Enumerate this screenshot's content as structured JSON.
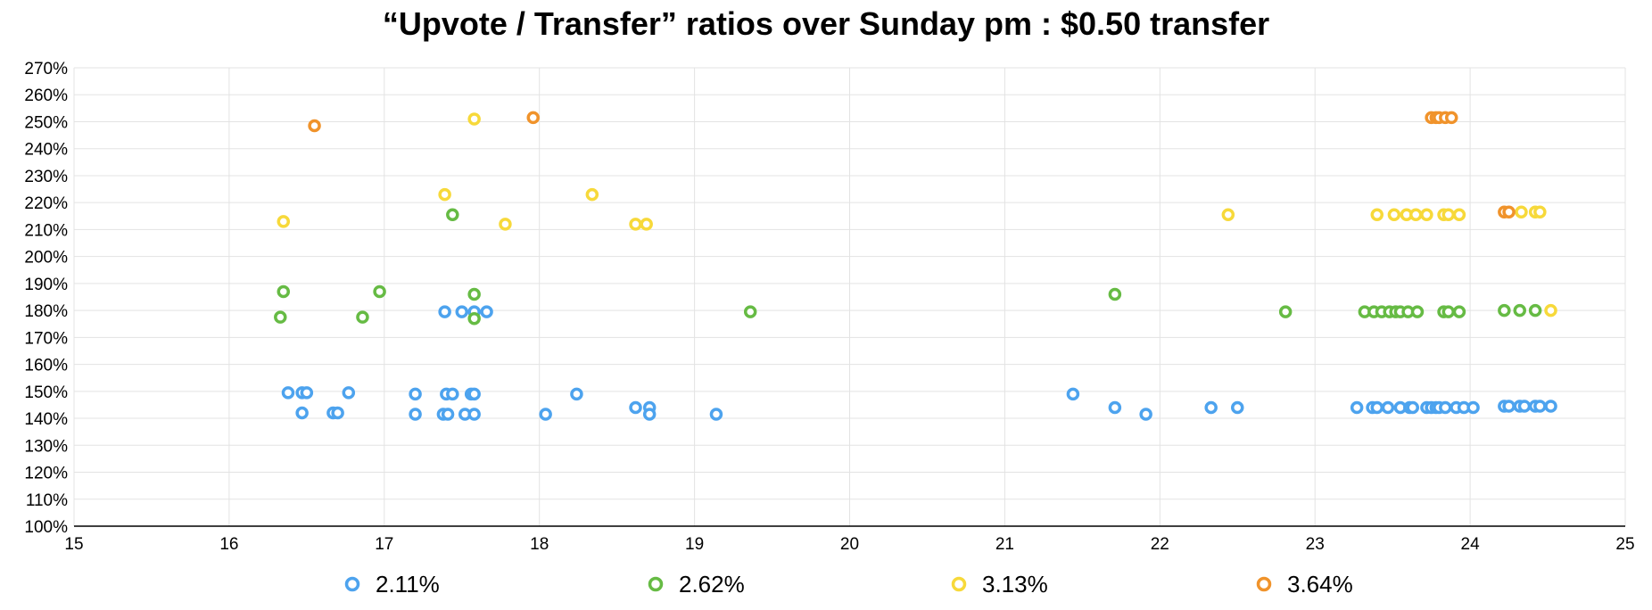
{
  "chart_data": {
    "type": "scatter",
    "title": "“Upvote / Transfer” ratios over Sunday pm : $0.50 transfer",
    "xlabel": "",
    "ylabel": "",
    "xlim": [
      15,
      25
    ],
    "ylim": [
      100,
      270
    ],
    "x_ticks": [
      15,
      16,
      17,
      18,
      19,
      20,
      21,
      22,
      23,
      24,
      25
    ],
    "y_ticks": [
      100,
      110,
      120,
      130,
      140,
      150,
      160,
      170,
      180,
      190,
      200,
      210,
      220,
      230,
      240,
      250,
      260,
      270
    ],
    "y_tick_suffix": "%",
    "grid": true,
    "legend_position": "bottom",
    "series": [
      {
        "name": "2.11%",
        "color": "#4da3ee",
        "points": [
          [
            16.38,
            149.5
          ],
          [
            16.47,
            149.5
          ],
          [
            16.5,
            149.5
          ],
          [
            16.47,
            142
          ],
          [
            16.67,
            142
          ],
          [
            16.7,
            142
          ],
          [
            16.77,
            149.5
          ],
          [
            17.2,
            149
          ],
          [
            17.4,
            149
          ],
          [
            17.44,
            149
          ],
          [
            17.56,
            149
          ],
          [
            17.58,
            149
          ],
          [
            17.2,
            141.5
          ],
          [
            17.38,
            141.5
          ],
          [
            17.41,
            141.5
          ],
          [
            17.52,
            141.5
          ],
          [
            17.58,
            141.5
          ],
          [
            17.39,
            179.5
          ],
          [
            17.5,
            179.5
          ],
          [
            17.58,
            179.5
          ],
          [
            17.66,
            179.5
          ],
          [
            18.04,
            141.5
          ],
          [
            18.24,
            149
          ],
          [
            18.62,
            144
          ],
          [
            18.71,
            144
          ],
          [
            18.71,
            141.5
          ],
          [
            19.14,
            141.5
          ],
          [
            21.44,
            149
          ],
          [
            21.71,
            144
          ],
          [
            21.91,
            141.5
          ],
          [
            22.33,
            144
          ],
          [
            22.5,
            144
          ],
          [
            23.27,
            144
          ],
          [
            23.37,
            144
          ],
          [
            23.4,
            144
          ],
          [
            23.47,
            144
          ],
          [
            23.55,
            144
          ],
          [
            23.61,
            144
          ],
          [
            23.63,
            144
          ],
          [
            23.72,
            144
          ],
          [
            23.75,
            144
          ],
          [
            23.78,
            144
          ],
          [
            23.8,
            144
          ],
          [
            23.84,
            144
          ],
          [
            23.91,
            144
          ],
          [
            23.96,
            144
          ],
          [
            24.02,
            144
          ],
          [
            24.22,
            144.5
          ],
          [
            24.25,
            144.5
          ],
          [
            24.32,
            144.5
          ],
          [
            24.35,
            144.5
          ],
          [
            24.42,
            144.5
          ],
          [
            24.45,
            144.5
          ],
          [
            24.52,
            144.5
          ]
        ]
      },
      {
        "name": "2.62%",
        "color": "#66bb44",
        "points": [
          [
            16.33,
            177.5
          ],
          [
            16.35,
            187
          ],
          [
            16.86,
            177.5
          ],
          [
            16.97,
            187
          ],
          [
            17.44,
            215.5
          ],
          [
            17.58,
            186
          ],
          [
            17.58,
            177
          ],
          [
            19.36,
            179.5
          ],
          [
            21.71,
            186
          ],
          [
            22.81,
            179.5
          ],
          [
            23.32,
            179.5
          ],
          [
            23.38,
            179.5
          ],
          [
            23.43,
            179.5
          ],
          [
            23.48,
            179.5
          ],
          [
            23.52,
            179.5
          ],
          [
            23.55,
            179.5
          ],
          [
            23.6,
            179.5
          ],
          [
            23.66,
            179.5
          ],
          [
            23.83,
            179.5
          ],
          [
            23.86,
            179.5
          ],
          [
            23.93,
            179.5
          ],
          [
            24.22,
            180
          ],
          [
            24.32,
            180
          ],
          [
            24.42,
            180
          ]
        ]
      },
      {
        "name": "3.13%",
        "color": "#f7d93a",
        "points": [
          [
            16.35,
            213
          ],
          [
            17.39,
            223
          ],
          [
            17.58,
            251
          ],
          [
            17.78,
            212
          ],
          [
            18.34,
            223
          ],
          [
            18.62,
            212
          ],
          [
            18.69,
            212
          ],
          [
            22.44,
            215.5
          ],
          [
            23.4,
            215.5
          ],
          [
            23.51,
            215.5
          ],
          [
            23.59,
            215.5
          ],
          [
            23.65,
            215.5
          ],
          [
            23.72,
            215.5
          ],
          [
            23.83,
            215.5
          ],
          [
            23.86,
            215.5
          ],
          [
            23.93,
            215.5
          ],
          [
            24.33,
            216.5
          ],
          [
            24.42,
            216.5
          ],
          [
            24.45,
            216.5
          ],
          [
            24.52,
            180
          ]
        ]
      },
      {
        "name": "3.64%",
        "color": "#f0932b",
        "points": [
          [
            16.55,
            248.5
          ],
          [
            17.96,
            251.5
          ],
          [
            23.75,
            251.5
          ],
          [
            23.78,
            251.5
          ],
          [
            23.8,
            251.5
          ],
          [
            23.84,
            251.5
          ],
          [
            23.88,
            251.5
          ],
          [
            24.22,
            216.5
          ],
          [
            24.25,
            216.5
          ]
        ]
      }
    ]
  }
}
